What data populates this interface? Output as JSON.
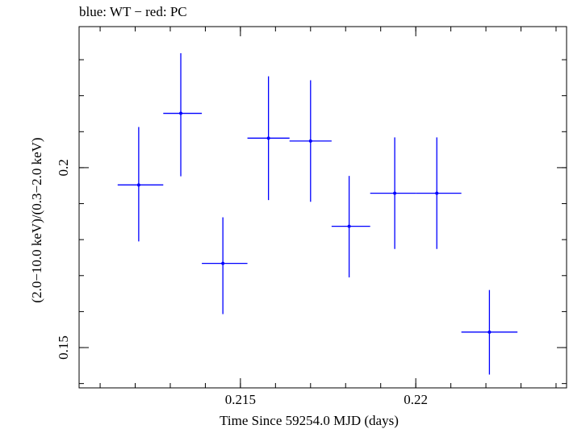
{
  "header_text": "blue: WT − red: PC",
  "chart_data": {
    "type": "scatter",
    "xlabel": "Time Since 59254.0 MJD (days)",
    "ylabel": "(2.0−10.0 keV)/(0.3−2.0 keV)",
    "xlim": [
      0.2104,
      0.2243
    ],
    "ylim": [
      0.1388,
      0.2392
    ],
    "x_ticks": [
      {
        "value": 0.215,
        "label": "0.215"
      },
      {
        "value": 0.22,
        "label": "0.22"
      }
    ],
    "y_ticks": [
      {
        "value": 0.15,
        "label": "0.15"
      },
      {
        "value": 0.2,
        "label": "0.2"
      }
    ],
    "grid": false,
    "series": [
      {
        "color": "#0000ff",
        "points": [
          {
            "x": 0.2121,
            "x_lo": 0.2115,
            "x_hi": 0.2128,
            "y": 0.1952,
            "y_lo": 0.1795,
            "y_hi": 0.2113
          },
          {
            "x": 0.2133,
            "x_lo": 0.2128,
            "x_hi": 0.2139,
            "y": 0.2151,
            "y_lo": 0.1976,
            "y_hi": 0.2318
          },
          {
            "x": 0.2145,
            "x_lo": 0.2139,
            "x_hi": 0.2152,
            "y": 0.1734,
            "y_lo": 0.1593,
            "y_hi": 0.1862
          },
          {
            "x": 0.2158,
            "x_lo": 0.2152,
            "x_hi": 0.2164,
            "y": 0.2082,
            "y_lo": 0.191,
            "y_hi": 0.2254
          },
          {
            "x": 0.217,
            "x_lo": 0.2164,
            "x_hi": 0.2176,
            "y": 0.2074,
            "y_lo": 0.1905,
            "y_hi": 0.2243
          },
          {
            "x": 0.2181,
            "x_lo": 0.2176,
            "x_hi": 0.2187,
            "y": 0.1837,
            "y_lo": 0.1695,
            "y_hi": 0.1977
          },
          {
            "x": 0.2194,
            "x_lo": 0.2187,
            "x_hi": 0.22,
            "y": 0.1929,
            "y_lo": 0.1774,
            "y_hi": 0.2084
          },
          {
            "x": 0.2206,
            "x_lo": 0.22,
            "x_hi": 0.2213,
            "y": 0.1929,
            "y_lo": 0.1774,
            "y_hi": 0.2084
          },
          {
            "x": 0.2221,
            "x_lo": 0.2213,
            "x_hi": 0.2229,
            "y": 0.1543,
            "y_lo": 0.1425,
            "y_hi": 0.166
          }
        ]
      }
    ]
  }
}
